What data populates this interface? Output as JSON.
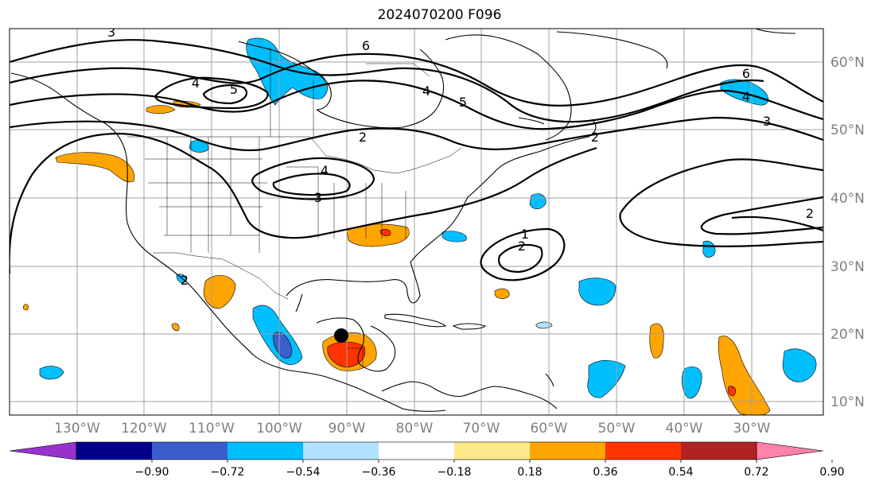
{
  "title": "2024070200 F096",
  "lat_labels": [
    "60°N",
    "50°N",
    "40°N",
    "30°N",
    "20°N",
    "10°N"
  ],
  "lon_labels": [
    "130°W",
    "120°W",
    "110°W",
    "100°W",
    "90°W",
    "80°W",
    "70°W",
    "60°W",
    "50°W",
    "40°W",
    "30°W"
  ],
  "colorbar": {
    "colors": [
      "#9932cc",
      "#00008b",
      "#3a5fcd",
      "#00bfff",
      "#b0e2ff",
      "#ffffff",
      "#ffe88a",
      "#ffa500",
      "#ff3300",
      "#b22222",
      "#ff82ab"
    ],
    "extend_min_color": "#9932cc",
    "extend_max_color": "#ff82ab",
    "tick_labels": [
      "−0.90",
      "−0.72",
      "−0.54",
      "−0.36",
      "−0.18",
      "0.18",
      "0.36",
      "0.54",
      "0.72",
      "0.90"
    ]
  },
  "contour_labels": [
    "3",
    "6",
    "4",
    "5",
    "4",
    "5",
    "6",
    "4",
    "3",
    "2",
    "2",
    "4",
    "3",
    "1",
    "2",
    "2",
    "2"
  ],
  "marker": {
    "name": "storm-center",
    "color": "#000000"
  }
}
